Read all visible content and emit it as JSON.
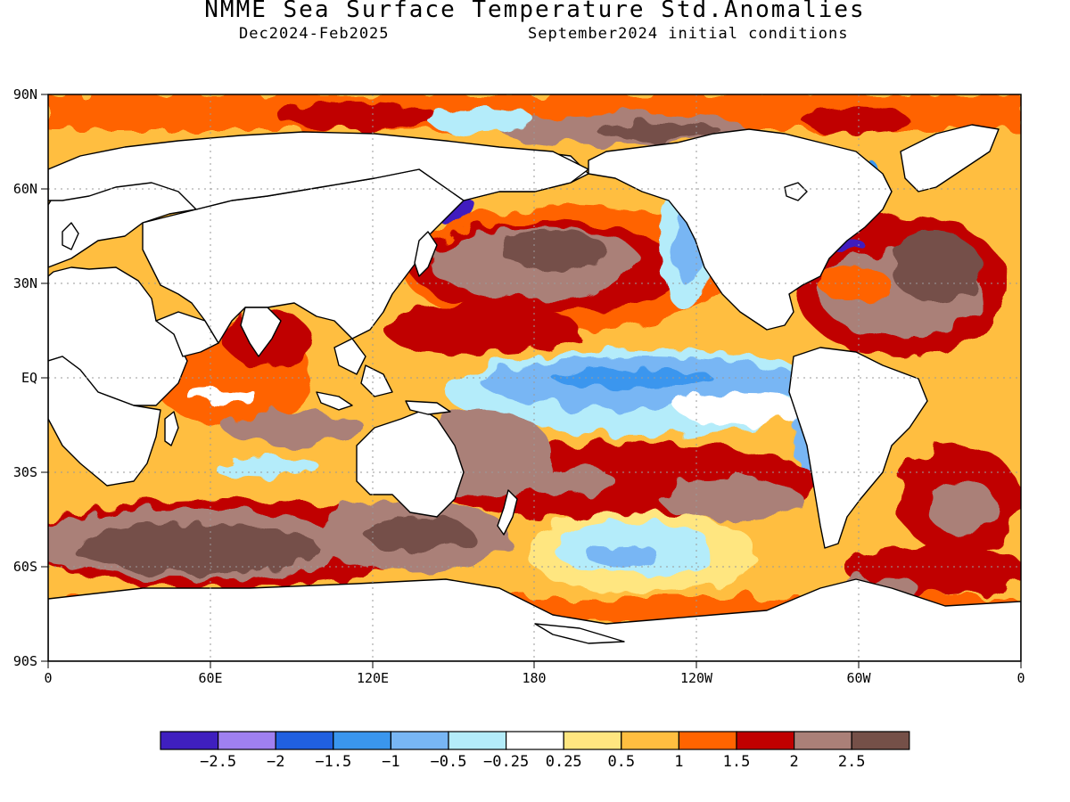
{
  "header": {
    "title": "NMME Sea Surface Temperature Std.Anomalies",
    "season": "Dec2024-Feb2025",
    "init": "September2024 initial conditions"
  },
  "axes": {
    "lat_labels": [
      "90N",
      "60N",
      "30N",
      "EQ",
      "30S",
      "60S",
      "90S"
    ],
    "lon_labels": [
      "0",
      "60E",
      "120E",
      "180",
      "120W",
      "60W",
      "0"
    ]
  },
  "legend": {
    "colors": [
      "#3f1fbf",
      "#9f80f0",
      "#2060e0",
      "#3a96ee",
      "#78b6f4",
      "#b4ecfa",
      "#ffffff",
      "#ffe680",
      "#ffbe40",
      "#ff6400",
      "#c00000",
      "#aa8078",
      "#755048"
    ],
    "labels": [
      "-2.5",
      "-2",
      "-1.5",
      "-1",
      "-0.5",
      "-0.25",
      "0.25",
      "0.5",
      "1",
      "1.5",
      "2",
      "2.5"
    ]
  },
  "colors": {
    "land": "#ffffff",
    "coast": "#000000",
    "frame": "#000000"
  }
}
